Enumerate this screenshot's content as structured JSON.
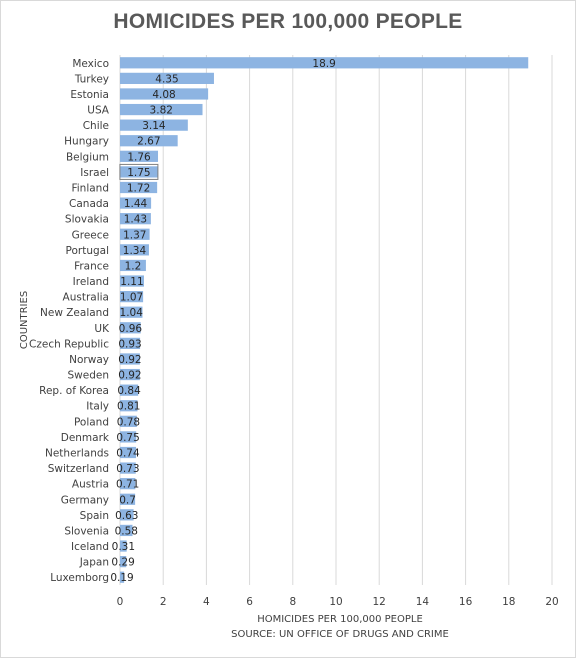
{
  "chart_data": {
    "type": "bar",
    "orientation": "horizontal",
    "title": "HOMICIDES PER 100,000 PEOPLE",
    "xlabel": "HOMICIDES PER 100,000 PEOPLE",
    "source": "SOURCE: UN OFFICE OF DRUGS AND CRIME",
    "ylabel": "COUNTRIES",
    "xlim": [
      0,
      20
    ],
    "xticks": [
      0,
      2,
      4,
      6,
      8,
      10,
      12,
      14,
      16,
      18,
      20
    ],
    "grid": "vertical",
    "bar_color": "#8db4e2",
    "categories": [
      "Mexico",
      "Turkey",
      "Estonia",
      "USA",
      "Chile",
      "Hungary",
      "Belgium",
      "Israel",
      "Finland",
      "Canada",
      "Slovakia",
      "Greece",
      "Portugal",
      "France",
      "Ireland",
      "Australia",
      "New Zealand",
      "UK",
      "Czech Republic",
      "Norway",
      "Sweden",
      "Rep. of Korea",
      "Italy",
      "Poland",
      "Denmark",
      "Netherlands",
      "Switzerland",
      "Austria",
      "Germany",
      "Spain",
      "Slovenia",
      "Iceland",
      "Japan",
      "Luxemborg"
    ],
    "values": [
      18.9,
      4.35,
      4.08,
      3.82,
      3.14,
      2.67,
      1.76,
      1.75,
      1.72,
      1.44,
      1.43,
      1.37,
      1.34,
      1.2,
      1.11,
      1.07,
      1.04,
      0.96,
      0.93,
      0.92,
      0.92,
      0.84,
      0.81,
      0.78,
      0.75,
      0.74,
      0.73,
      0.71,
      0.7,
      0.63,
      0.58,
      0.31,
      0.29,
      0.19
    ],
    "value_labels": [
      "18.9",
      "4.35",
      "4.08",
      "3.82",
      "3.14",
      "2.67",
      "1.76",
      "1.75",
      "1.72",
      "1.44",
      "1.43",
      "1.37",
      "1.34",
      "1.2",
      "1.11",
      "1.07",
      "1.04",
      "0.96",
      "0.93",
      "0.92",
      "0.92",
      "0.84",
      "0.81",
      "0.78",
      "0.75",
      "0.74",
      "0.73",
      "0.71",
      "0.7",
      "0.63",
      "0.58",
      "0.31",
      "0.29",
      "0.19"
    ],
    "highlighted_category": "Israel"
  }
}
